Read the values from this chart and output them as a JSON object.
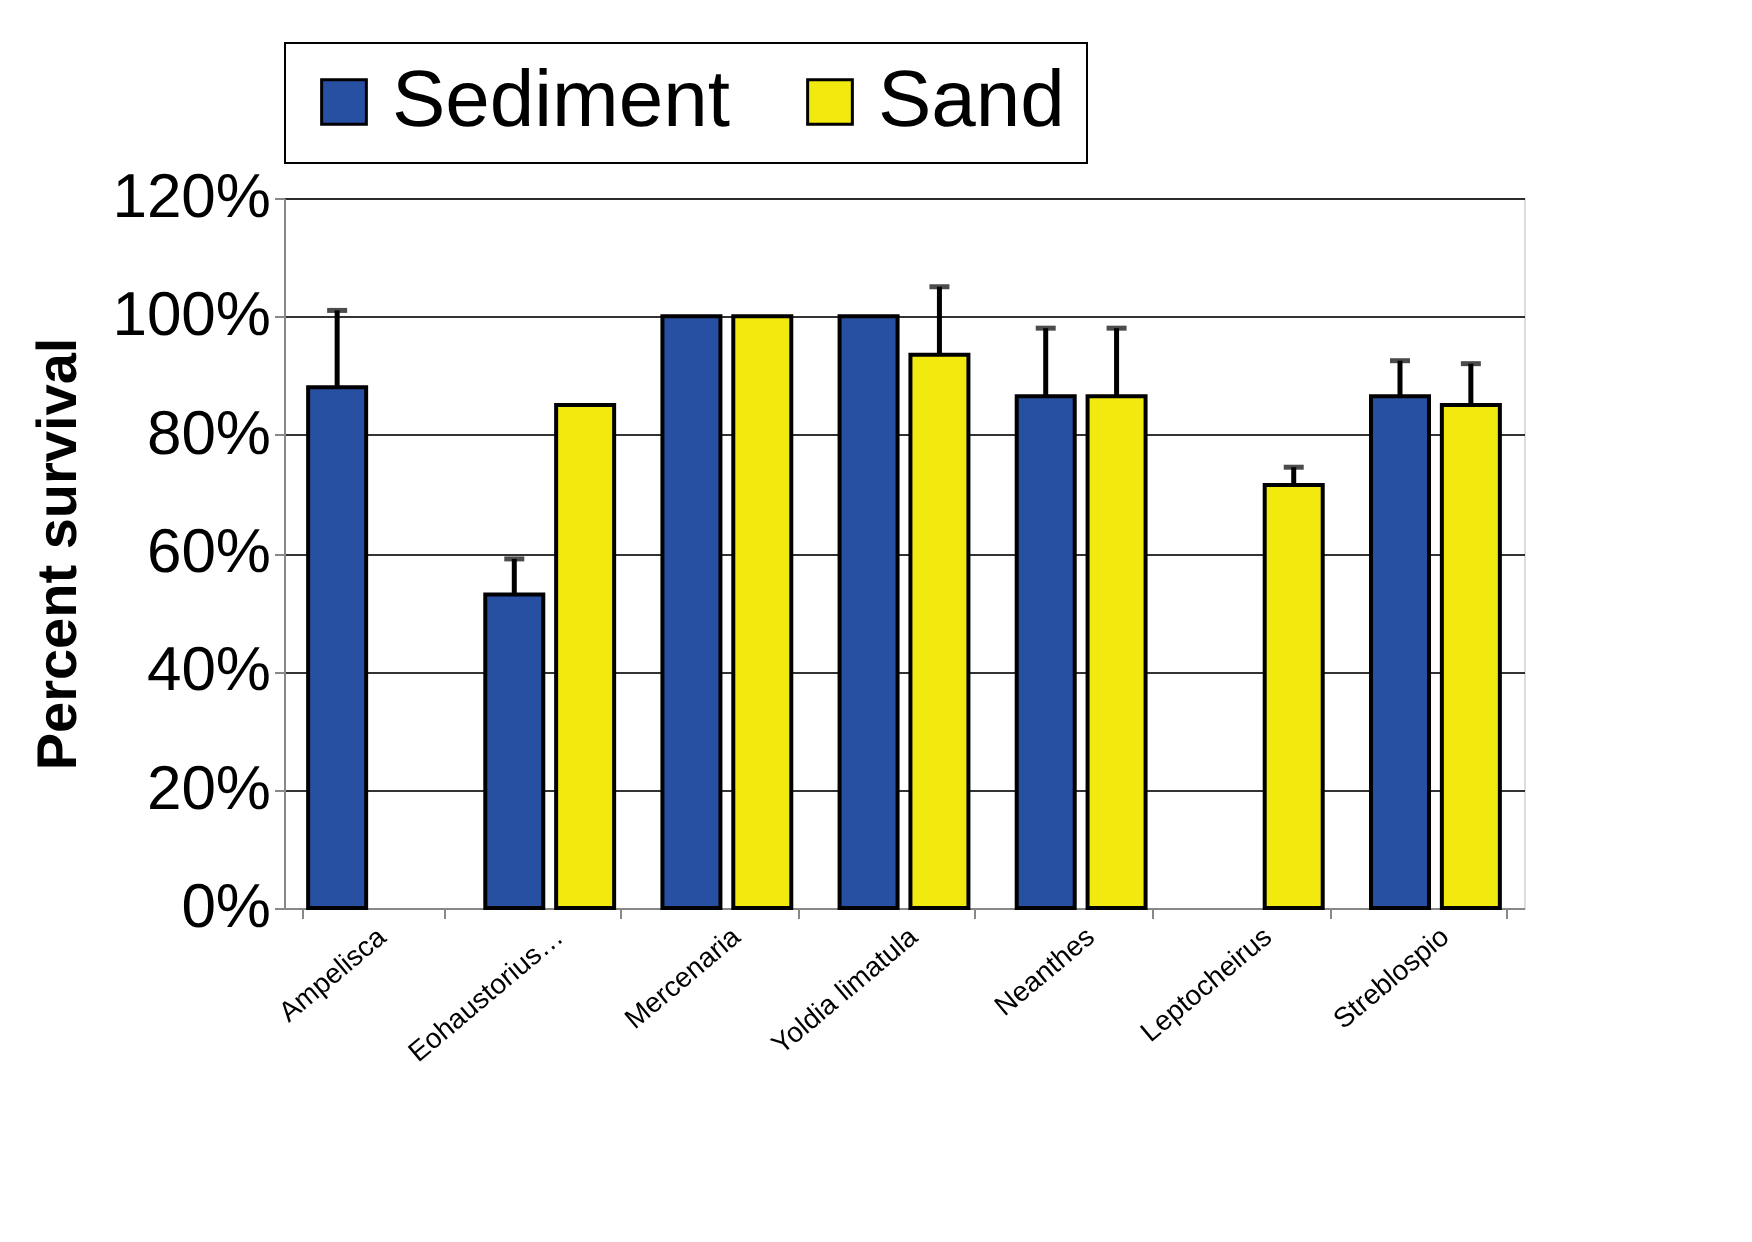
{
  "chart_data": {
    "type": "bar",
    "ylabel": "Percent survival",
    "categories": [
      "Ampelisca",
      "Eohaustorius…",
      "Mercenaria",
      "Yoldia limatula",
      "Neanthes",
      "Leptocheirus",
      "Streblospio"
    ],
    "series": [
      {
        "name": "Sediment",
        "color": "#2750a3",
        "values": [
          88,
          53,
          100,
          100,
          86.5,
          null,
          86.5
        ],
        "errors": [
          [
            88,
            101
          ],
          [
            53,
            59
          ],
          null,
          null,
          [
            86.5,
            98
          ],
          null,
          [
            86.5,
            92.5
          ]
        ]
      },
      {
        "name": "Sand",
        "color": "#f2ea0f",
        "values": [
          null,
          85,
          100,
          93.5,
          86.5,
          71.5,
          85
        ],
        "errors": [
          null,
          null,
          null,
          [
            93.5,
            105
          ],
          [
            86.5,
            98
          ],
          [
            71.5,
            74.5
          ],
          [
            85,
            92
          ]
        ]
      }
    ],
    "ylim": [
      0,
      120
    ],
    "yticks": [
      {
        "value": 0,
        "label": "0%"
      },
      {
        "value": 20,
        "label": "20%"
      },
      {
        "value": 40,
        "label": "40%"
      },
      {
        "value": 60,
        "label": "60%"
      },
      {
        "value": 80,
        "label": "80%"
      },
      {
        "value": 100,
        "label": "100%"
      },
      {
        "value": 120,
        "label": "120%"
      }
    ],
    "grid": "y",
    "legend": "top"
  }
}
